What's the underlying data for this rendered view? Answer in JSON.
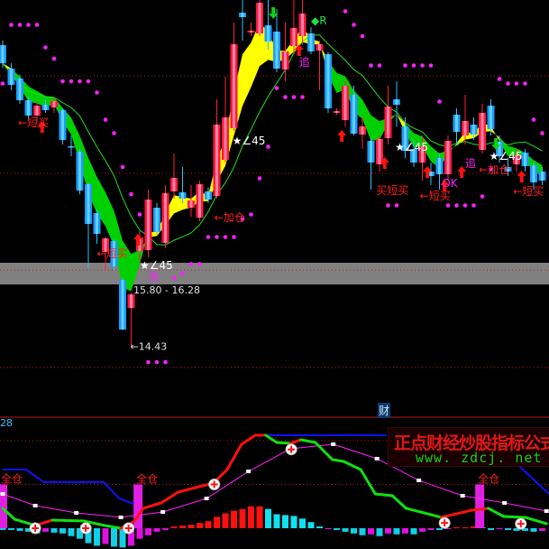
{
  "chart_data": [
    {
      "type": "candlestick",
      "panel": "price",
      "ohlc": [
        [
          21.1,
          21.2,
          20.6,
          20.7
        ],
        [
          20.58,
          20.7,
          20.1,
          20.22
        ],
        [
          20.36,
          20.45,
          19.8,
          19.88
        ],
        [
          19.88,
          19.95,
          19.45,
          19.54
        ],
        [
          19.54,
          19.85,
          19.4,
          19.76
        ],
        [
          19.78,
          19.9,
          19.6,
          19.66
        ],
        [
          19.72,
          19.95,
          19.6,
          19.86
        ],
        [
          19.66,
          19.7,
          18.9,
          19.0
        ],
        [
          18.86,
          19.1,
          18.64,
          18.84
        ],
        [
          18.74,
          18.8,
          17.8,
          17.88
        ],
        [
          18.02,
          18.05,
          16.16,
          17.14
        ],
        [
          17.38,
          17.45,
          16.7,
          16.92
        ],
        [
          16.52,
          16.85,
          16.1,
          16.82
        ],
        [
          16.76,
          16.8,
          16.1,
          16.2
        ],
        [
          15.9,
          15.95,
          14.8,
          14.8
        ],
        [
          15.28,
          15.62,
          14.43,
          15.58
        ],
        [
          16.54,
          17.0,
          16.3,
          16.84
        ],
        [
          16.56,
          17.9,
          16.4,
          17.68
        ],
        [
          17.5,
          17.6,
          16.9,
          16.96
        ],
        [
          16.72,
          18.0,
          16.6,
          17.82
        ],
        [
          17.86,
          18.7,
          17.7,
          18.16
        ],
        [
          17.84,
          18.4,
          17.6,
          17.7
        ],
        [
          17.5,
          18.0,
          17.3,
          17.66
        ],
        [
          17.28,
          18.1,
          17.2,
          18.02
        ],
        [
          17.86,
          17.95,
          17.6,
          17.68
        ],
        [
          17.76,
          19.9,
          17.7,
          19.34
        ],
        [
          18.56,
          20.4,
          18.5,
          19.5
        ],
        [
          19.26,
          21.6,
          19.2,
          21.12
        ],
        [
          21.82,
          22.1,
          21.2,
          21.72
        ],
        [
          21.38,
          21.6,
          21.3,
          21.42
        ],
        [
          21.36,
          22.1,
          21.3,
          22.04
        ],
        [
          21.54,
          22.1,
          21.0,
          21.18
        ],
        [
          21.4,
          21.9,
          20.5,
          20.58
        ],
        [
          20.56,
          21.6,
          20.3,
          20.96
        ],
        [
          21.08,
          22.1,
          20.9,
          21.48
        ],
        [
          21.3,
          22.1,
          21.1,
          21.8
        ],
        [
          21.36,
          21.5,
          20.9,
          20.96
        ],
        [
          20.98,
          21.2,
          20.1,
          21.12
        ],
        [
          20.9,
          20.95,
          19.6,
          19.7
        ],
        [
          19.6,
          19.7,
          19.55,
          19.64
        ],
        [
          19.44,
          20.3,
          19.3,
          20.2
        ],
        [
          20.0,
          20.2,
          19.1,
          19.14
        ],
        [
          19.12,
          19.5,
          18.8,
          19.3
        ],
        [
          18.98,
          19.05,
          17.9,
          18.5
        ],
        [
          18.46,
          19.1,
          18.3,
          19.02
        ],
        [
          19.04,
          20.2,
          18.9,
          19.74
        ],
        [
          19.9,
          20.3,
          19.3,
          19.78
        ],
        [
          19.3,
          19.5,
          18.6,
          18.76
        ],
        [
          18.8,
          19.0,
          18.4,
          18.5
        ],
        [
          18.5,
          19.1,
          18.1,
          18.86
        ],
        [
          18.3,
          18.5,
          18.0,
          18.2
        ],
        [
          18.6,
          18.7,
          17.9,
          18.24
        ],
        [
          18.24,
          19.1,
          18.1,
          18.98
        ],
        [
          19.56,
          19.7,
          18.9,
          19.18
        ],
        [
          19.1,
          20.0,
          18.9,
          19.42
        ],
        [
          19.34,
          19.5,
          19.0,
          19.12
        ],
        [
          18.78,
          19.8,
          18.7,
          19.6
        ],
        [
          19.76,
          19.9,
          19.1,
          19.24
        ],
        [
          18.96,
          19.1,
          18.5,
          18.64
        ],
        [
          18.4,
          18.6,
          18.2,
          18.3
        ],
        [
          18.46,
          18.8,
          18.3,
          18.66
        ],
        [
          18.72,
          18.8,
          18.3,
          18.42
        ],
        [
          18.44,
          18.5,
          17.9,
          18.06
        ],
        [
          18.3,
          18.4,
          18.0,
          18.1
        ]
      ],
      "grid_prices": [
        20.42,
        18.26,
        16.12,
        13.96
      ],
      "price_band": {
        "low": 15.8,
        "high": 16.28,
        "label": "15.80 - 16.28"
      },
      "low_marker": {
        "i": 15,
        "price": 14.43,
        "label": "←14.43"
      },
      "annotations": [
        {
          "text": "←短买",
          "i": 1.8,
          "price": 19.4,
          "color": "#ff2020"
        },
        {
          "text": "←短买",
          "i": 11,
          "price": 16.5,
          "color": "#ff2020"
        },
        {
          "text": "←加仓",
          "i": 24.7,
          "price": 17.3,
          "color": "#ff2020"
        },
        {
          "text": "★∠45",
          "i": 16,
          "price": 16.24,
          "color": "#ffffff"
        },
        {
          "text": "★∠45",
          "i": 26.8,
          "price": 19.0,
          "color": "#ffffff"
        },
        {
          "text": "★∠45",
          "i": 45.8,
          "price": 18.86,
          "color": "#ffffff"
        },
        {
          "text": "★∠45",
          "i": 56.8,
          "price": 18.66,
          "color": "#ffffff"
        },
        {
          "text": "追",
          "i": 17,
          "price": 16.0,
          "color": "#ff20ff"
        },
        {
          "text": "追",
          "i": 34.6,
          "price": 20.74,
          "color": "#ff20ff"
        },
        {
          "text": "追",
          "i": 54,
          "price": 18.5,
          "color": "#ff20ff"
        },
        {
          "text": "◆R",
          "i": 36,
          "price": 21.66,
          "color": "#20e040"
        },
        {
          "text": "买短买",
          "i": 43.6,
          "price": 17.9,
          "color": "#ff2020"
        },
        {
          "text": "←短买",
          "i": 48.7,
          "price": 17.78,
          "color": "#ff2020"
        },
        {
          "text": "OK",
          "i": 51.3,
          "price": 18.06,
          "color": "#ff20ff"
        },
        {
          "text": "←加仓",
          "i": 55.6,
          "price": 18.36,
          "color": "#ff2020"
        },
        {
          "text": "←短买",
          "i": 59.6,
          "price": 17.88,
          "color": "#ff2020"
        }
      ],
      "arrows": [
        {
          "i": 4.6,
          "price": 19.3,
          "dir": "up"
        },
        {
          "i": 15.8,
          "price": 16.8,
          "dir": "up"
        },
        {
          "i": 34.6,
          "price": 21.0,
          "dir": "up"
        },
        {
          "i": 39.6,
          "price": 19.1,
          "dir": "up"
        },
        {
          "i": 44.6,
          "price": 18.5,
          "dir": "up"
        },
        {
          "i": 49.6,
          "price": 18.3,
          "dir": "up"
        },
        {
          "i": 51.6,
          "price": 18.0,
          "dir": "up"
        },
        {
          "i": 53.6,
          "price": 18.3,
          "dir": "up"
        },
        {
          "i": 60.6,
          "price": 18.2,
          "dir": "up"
        },
        {
          "i": 31.6,
          "price": 21.8,
          "dir": "down"
        },
        {
          "i": 57.6,
          "price": 18.9,
          "dir": "down"
        }
      ]
    },
    {
      "type": "line+bar",
      "panel": "indicator",
      "top_label": "28",
      "levels": [
        100,
        50
      ],
      "main_line": [
        [
          0,
          22.7
        ],
        [
          1.4,
          10.3
        ],
        [
          3.8,
          3.1
        ],
        [
          5.8,
          9.3
        ],
        [
          9.5,
          8.2
        ],
        [
          11.9,
          3.1
        ],
        [
          13.8,
          0
        ],
        [
          15.3,
          7.2
        ],
        [
          16.4,
          22.7
        ],
        [
          18.5,
          28.9
        ],
        [
          20.5,
          41.2
        ],
        [
          22.5,
          46.4
        ],
        [
          24.6,
          51.5
        ],
        [
          26.2,
          67
        ],
        [
          27.9,
          95.9
        ],
        [
          29.5,
          106.2
        ],
        [
          30.7,
          106.2
        ],
        [
          32,
          97.9
        ],
        [
          33.6,
          96.9
        ],
        [
          34.8,
          101
        ],
        [
          36.5,
          97.9
        ],
        [
          38.5,
          78.4
        ],
        [
          39.8,
          76.3
        ],
        [
          41.8,
          67
        ],
        [
          43.5,
          39.2
        ],
        [
          45.5,
          37.1
        ],
        [
          47.1,
          22.7
        ],
        [
          50,
          15.5
        ],
        [
          51.2,
          12.4
        ],
        [
          54.8,
          20.6
        ],
        [
          56.7,
          22.7
        ],
        [
          58.5,
          13.4
        ],
        [
          61,
          12.4
        ],
        [
          63.5,
          5.2
        ]
      ],
      "signal_line": [
        [
          0,
          39.2
        ],
        [
          3.8,
          25.8
        ],
        [
          8.6,
          17.5
        ],
        [
          13.8,
          12.4
        ],
        [
          18.7,
          18.6
        ],
        [
          23.8,
          34
        ],
        [
          28.7,
          64.9
        ],
        [
          33.6,
          90.7
        ],
        [
          38.6,
          95.9
        ],
        [
          43.7,
          79.4
        ],
        [
          48.6,
          54.6
        ],
        [
          53.7,
          37.1
        ],
        [
          58.6,
          28.9
        ],
        [
          63.5,
          19.6
        ]
      ],
      "blue_segments": [
        [
          [
            0,
            67
          ],
          [
            2.7,
            67
          ],
          [
            4.8,
            52.6
          ],
          [
            11.8,
            52.6
          ],
          [
            13.6,
            34
          ],
          [
            15.3,
            27.8
          ]
        ],
        [
          [
            29.7,
            106.2
          ],
          [
            44.8,
            106.2
          ]
        ],
        [
          [
            60.2,
            72
          ],
          [
            63.8,
            39
          ]
        ]
      ],
      "histogram": [
        -2,
        -2,
        -3,
        -4,
        -6,
        -4,
        -5,
        -6,
        -9,
        -12,
        -17,
        -20,
        -18,
        -21,
        -22,
        -20,
        -12,
        -8,
        -4,
        -2,
        2,
        3,
        4,
        6,
        8,
        13,
        17,
        20,
        22,
        25,
        25,
        22,
        16,
        15,
        14,
        11,
        7,
        2,
        -1,
        -2,
        -4,
        -6,
        -8,
        -7,
        -9,
        -6,
        -7,
        -6,
        -7,
        -4,
        -2,
        -2,
        -1,
        1,
        1,
        2,
        1,
        -2,
        -1,
        -2,
        -3,
        -3,
        -4,
        -3
      ],
      "full_position_bars": [
        {
          "i": 0,
          "value": 50,
          "label": "全仓"
        },
        {
          "i": 15.8,
          "value": 50,
          "label": "全仓"
        },
        {
          "i": 55.7,
          "value": 50,
          "label": "全仓"
        }
      ],
      "plus_markers": [
        [
          3.8,
          0
        ],
        [
          9.7,
          0
        ],
        [
          14.7,
          0
        ],
        [
          24.7,
          50
        ],
        [
          33.7,
          90
        ],
        [
          51.6,
          6
        ],
        [
          60.5,
          5
        ]
      ]
    }
  ],
  "labels": {
    "cai": "财"
  },
  "watermark": {
    "title": "正点财经炒股指标公式",
    "url": "www. zdcj. net"
  },
  "colors": {
    "up": "#ff1a3c",
    "down": "#1a9cff",
    "ribbon_down": "#00d000",
    "ribbon_up": "#ffff00",
    "sar": "#ff20ff",
    "grid": "#c01818",
    "band": "#808080"
  }
}
